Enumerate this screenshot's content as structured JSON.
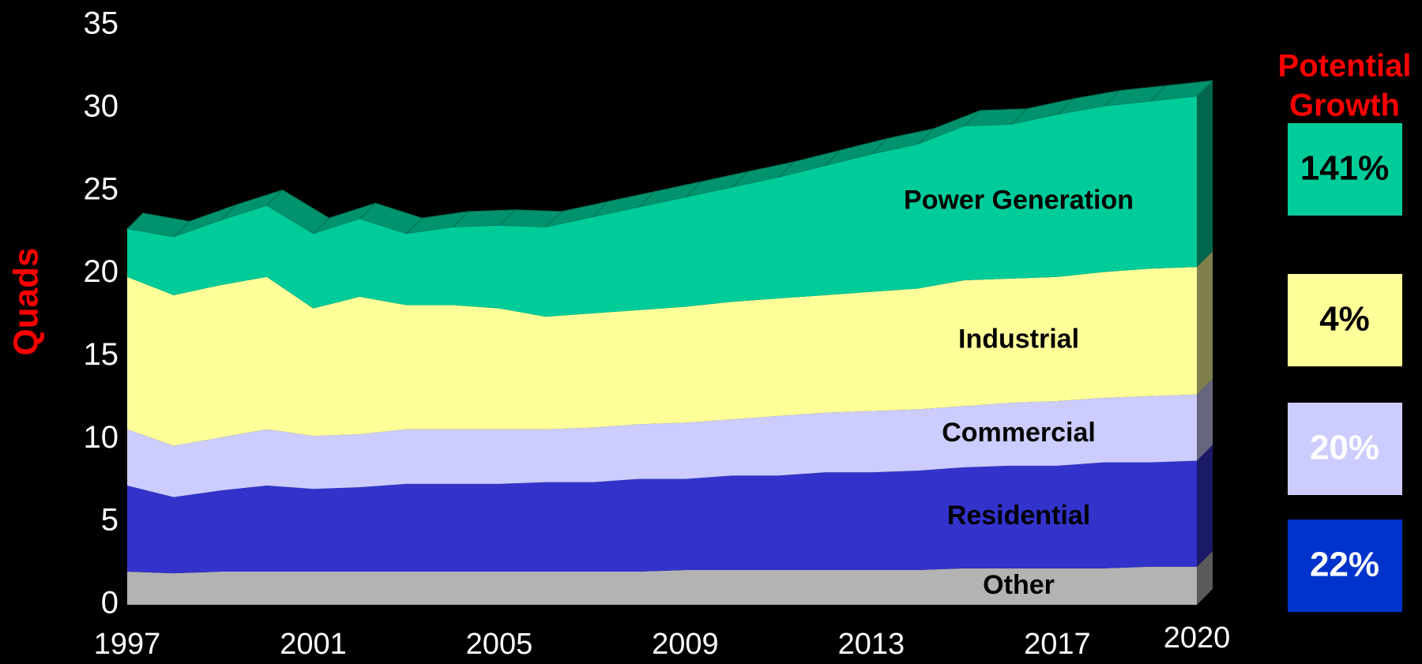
{
  "chart_data": {
    "type": "stacked_area",
    "y_label": "Quads",
    "x": [
      1997,
      1998,
      1999,
      2000,
      2001,
      2002,
      2003,
      2004,
      2005,
      2006,
      2007,
      2008,
      2009,
      2010,
      2011,
      2012,
      2013,
      2014,
      2015,
      2016,
      2017,
      2018,
      2019,
      2020
    ],
    "xlim": [
      1997,
      2020
    ],
    "xticks": [
      1997,
      2001,
      2005,
      2009,
      2013,
      2017,
      2020
    ],
    "ylim": [
      0,
      35
    ],
    "yticks": [
      0,
      5,
      10,
      15,
      20,
      25,
      30,
      35
    ],
    "series": [
      {
        "name": "Other",
        "color": "#b3b3b3",
        "values": [
          2.0,
          1.9,
          2.0,
          2.0,
          2.0,
          2.0,
          2.0,
          2.0,
          2.0,
          2.0,
          2.0,
          2.0,
          2.1,
          2.1,
          2.1,
          2.1,
          2.1,
          2.1,
          2.2,
          2.2,
          2.2,
          2.2,
          2.3,
          2.3
        ]
      },
      {
        "name": "Residential",
        "color": "#3333cc",
        "values": [
          5.2,
          4.6,
          4.9,
          5.2,
          5.0,
          5.1,
          5.3,
          5.3,
          5.3,
          5.4,
          5.4,
          5.6,
          5.5,
          5.7,
          5.7,
          5.9,
          5.9,
          6.0,
          6.1,
          6.2,
          6.2,
          6.4,
          6.3,
          6.4
        ]
      },
      {
        "name": "Commercial",
        "color": "#ccccff",
        "values": [
          3.4,
          3.1,
          3.2,
          3.4,
          3.2,
          3.2,
          3.3,
          3.3,
          3.3,
          3.2,
          3.3,
          3.3,
          3.4,
          3.4,
          3.6,
          3.6,
          3.7,
          3.7,
          3.7,
          3.8,
          3.9,
          3.9,
          4.0,
          4.0
        ]
      },
      {
        "name": "Industrial",
        "color": "#ffff99",
        "values": [
          9.2,
          9.1,
          9.2,
          9.2,
          7.7,
          8.3,
          7.5,
          7.5,
          7.3,
          6.8,
          6.9,
          6.9,
          7.0,
          7.1,
          7.1,
          7.1,
          7.2,
          7.3,
          7.6,
          7.5,
          7.5,
          7.6,
          7.7,
          7.7
        ]
      },
      {
        "name": "Power Generation",
        "color": "#00cc99",
        "values": [
          2.9,
          3.5,
          3.9,
          4.3,
          4.5,
          4.7,
          4.3,
          4.7,
          5.0,
          5.4,
          5.8,
          6.2,
          6.6,
          6.9,
          7.3,
          7.8,
          8.3,
          8.7,
          9.3,
          9.3,
          9.8,
          10.0,
          10.1,
          10.3
        ]
      }
    ]
  },
  "growth": {
    "title": [
      "Potential",
      "Growth"
    ],
    "items": [
      {
        "label": "141%",
        "color": "#00cc99",
        "text_color": "#000000"
      },
      {
        "label": "4%",
        "color": "#ffff99",
        "text_color": "#000000"
      },
      {
        "label": "20%",
        "color": "#ccccff",
        "text_color": "#ffffff"
      },
      {
        "label": "22%",
        "color": "#0033cc",
        "text_color": "#ffffff"
      }
    ]
  }
}
